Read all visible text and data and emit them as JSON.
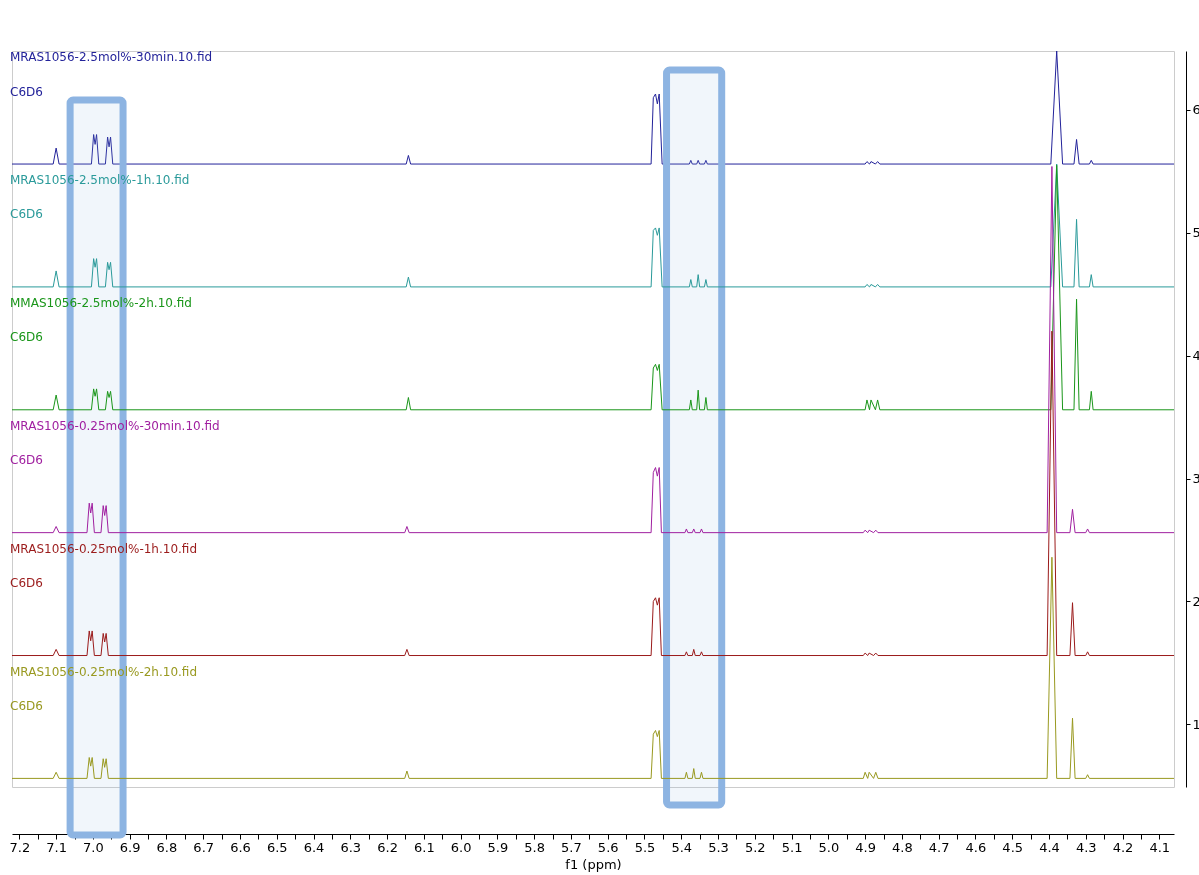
{
  "chart_data": {
    "type": "line",
    "xlabel": "f1 (ppm)",
    "xlim": [
      7.22,
      4.06
    ],
    "ylim": [
      0.49,
      6.48
    ],
    "xticks": [
      7.2,
      {
        "value": 7.15,
        "label": null
      },
      7.1,
      {
        "value": 7.05,
        "label": null
      },
      {
        "value": 7,
        "label": "7.0"
      },
      {
        "value": 6.95,
        "label": null
      },
      6.9,
      {
        "value": 6.85,
        "label": null
      },
      6.8,
      {
        "value": 6.75,
        "label": null
      },
      6.7,
      {
        "value": 6.65,
        "label": null
      },
      6.6,
      {
        "value": 6.55,
        "label": null
      },
      6.5,
      {
        "value": 6.45,
        "label": null
      },
      6.4,
      {
        "value": 6.35,
        "label": null
      },
      6.3,
      {
        "value": 6.25,
        "label": null
      },
      6.2,
      {
        "value": 6.15,
        "label": null
      },
      6.1,
      {
        "value": 6.05,
        "label": null
      },
      {
        "value": 6,
        "label": "6.0"
      },
      {
        "value": 5.95,
        "label": null
      },
      5.9,
      {
        "value": 5.85,
        "label": null
      },
      5.8,
      {
        "value": 5.75,
        "label": null
      },
      5.7,
      {
        "value": 5.65,
        "label": null
      },
      5.6,
      {
        "value": 5.55,
        "label": null
      },
      5.5,
      {
        "value": 5.45,
        "label": null
      },
      5.4,
      {
        "value": 5.35,
        "label": null
      },
      5.3,
      {
        "value": 5.25,
        "label": null
      },
      5.2,
      {
        "value": 5.15,
        "label": null
      },
      5.1,
      {
        "value": 5.05,
        "label": null
      },
      {
        "value": 5,
        "label": "5.0"
      },
      {
        "value": 4.95,
        "label": null
      },
      4.9,
      {
        "value": 4.85,
        "label": null
      },
      4.8,
      {
        "value": 4.75,
        "label": null
      },
      4.7,
      {
        "value": 4.65,
        "label": null
      },
      4.6,
      {
        "value": 4.55,
        "label": null
      },
      4.5,
      {
        "value": 4.45,
        "label": null
      },
      4.4,
      {
        "value": 4.35,
        "label": null
      },
      4.3,
      {
        "value": 4.25,
        "label": null
      },
      4.2,
      {
        "value": 4.15,
        "label": null
      },
      4.1
    ],
    "yticks": [
      1,
      2,
      3,
      4,
      5,
      6
    ],
    "grid": false,
    "annotations": [
      "C6D6",
      "C6D6",
      "C6D6",
      "C6D6",
      "C6D6",
      "C6D6"
    ],
    "bands": [
      {
        "axis": "x",
        "from": 7.062,
        "to": 6.918,
        "color": "#8db4e2"
      },
      {
        "axis": "x",
        "from": 5.44,
        "to": 5.29,
        "color": "#8db4e2"
      }
    ],
    "series": [
      {
        "name": "MRAS1056-2.5mol%-30min.10.fid",
        "color": "#23239a",
        "x": [
          7.22,
          7.108,
          7.1,
          7.092,
          7.004,
          6.998,
          6.994,
          6.99,
          6.984,
          6.966,
          6.96,
          6.956,
          6.952,
          6.946,
          6.148,
          6.142,
          6.136,
          5.482,
          5.476,
          5.47,
          5.465,
          5.46,
          5.452,
          5.378,
          5.374,
          5.37,
          5.358,
          5.354,
          5.35,
          5.337,
          5.333,
          5.329,
          4.9,
          4.895,
          4.888,
          4.884,
          4.872,
          4.866,
          4.86,
          4.395,
          4.379,
          4.363,
          4.332,
          4.325,
          4.318,
          4.29,
          4.285,
          4.28,
          4.06
        ],
        "values": [
          5.56,
          5.56,
          5.69,
          5.56,
          5.56,
          5.8,
          5.72,
          5.8,
          5.56,
          5.56,
          5.78,
          5.7,
          5.78,
          5.56,
          5.56,
          5.63,
          5.56,
          5.56,
          6.1,
          6.13,
          6.05,
          6.13,
          5.56,
          5.56,
          5.59,
          5.56,
          5.56,
          5.59,
          5.56,
          5.56,
          5.59,
          5.56,
          5.56,
          5.58,
          5.56,
          5.58,
          5.56,
          5.58,
          5.56,
          5.56,
          6.48,
          5.56,
          5.56,
          5.76,
          5.56,
          5.56,
          5.59,
          5.56,
          5.56
        ]
      },
      {
        "name": "MRAS1056-2.5mol%-1h.10.fid",
        "color": "#2a9a9a",
        "x": [
          7.22,
          7.108,
          7.1,
          7.092,
          7.004,
          6.998,
          6.994,
          6.99,
          6.984,
          6.966,
          6.96,
          6.956,
          6.952,
          6.946,
          6.148,
          6.142,
          6.136,
          5.482,
          5.476,
          5.47,
          5.465,
          5.46,
          5.452,
          5.378,
          5.374,
          5.37,
          5.358,
          5.354,
          5.35,
          5.337,
          5.333,
          5.329,
          4.9,
          4.895,
          4.888,
          4.884,
          4.872,
          4.866,
          4.86,
          4.395,
          4.379,
          4.363,
          4.332,
          4.325,
          4.318,
          4.29,
          4.285,
          4.28,
          4.06
        ],
        "values": [
          4.56,
          4.56,
          4.69,
          4.56,
          4.56,
          4.79,
          4.72,
          4.79,
          4.56,
          4.56,
          4.76,
          4.7,
          4.76,
          4.56,
          4.56,
          4.64,
          4.56,
          4.56,
          5.02,
          5.04,
          4.98,
          5.04,
          4.56,
          4.56,
          4.62,
          4.56,
          4.56,
          4.66,
          4.56,
          4.56,
          4.62,
          4.56,
          4.56,
          4.58,
          4.56,
          4.58,
          4.56,
          4.58,
          4.56,
          4.56,
          5.56,
          4.56,
          4.56,
          5.11,
          4.56,
          4.56,
          4.66,
          4.56,
          4.56
        ]
      },
      {
        "name": "MMAS1056-2.5mol%-2h.10.fid",
        "color": "#1a961a",
        "x": [
          7.22,
          7.108,
          7.1,
          7.092,
          7.004,
          6.998,
          6.994,
          6.99,
          6.984,
          6.966,
          6.96,
          6.956,
          6.952,
          6.946,
          6.148,
          6.142,
          6.136,
          5.482,
          5.476,
          5.47,
          5.465,
          5.46,
          5.452,
          5.378,
          5.374,
          5.37,
          5.358,
          5.354,
          5.35,
          5.337,
          5.333,
          5.329,
          4.9,
          4.895,
          4.888,
          4.884,
          4.872,
          4.866,
          4.86,
          4.395,
          4.379,
          4.363,
          4.332,
          4.325,
          4.318,
          4.29,
          4.285,
          4.28,
          4.06
        ],
        "values": [
          3.56,
          3.56,
          3.68,
          3.56,
          3.56,
          3.73,
          3.67,
          3.73,
          3.56,
          3.56,
          3.71,
          3.66,
          3.71,
          3.56,
          3.56,
          3.66,
          3.56,
          3.56,
          3.9,
          3.93,
          3.88,
          3.93,
          3.56,
          3.56,
          3.64,
          3.56,
          3.56,
          3.72,
          3.56,
          3.56,
          3.66,
          3.56,
          3.56,
          3.64,
          3.56,
          3.64,
          3.56,
          3.64,
          3.56,
          3.56,
          5.55,
          3.56,
          3.56,
          4.46,
          3.56,
          3.56,
          3.71,
          3.56,
          3.56
        ]
      },
      {
        "name": "MRAS1056-0.25mol%-30min.10.fid",
        "color": "#a020a0",
        "x": [
          7.22,
          7.108,
          7.1,
          7.092,
          7.016,
          7.01,
          7.006,
          7.002,
          6.996,
          6.978,
          6.972,
          6.968,
          6.964,
          6.958,
          6.152,
          6.146,
          6.14,
          5.482,
          5.476,
          5.47,
          5.465,
          5.46,
          5.454,
          5.39,
          5.386,
          5.382,
          5.37,
          5.366,
          5.362,
          5.349,
          5.345,
          5.341,
          4.905,
          4.9,
          4.893,
          4.889,
          4.877,
          4.871,
          4.865,
          4.405,
          4.392,
          4.379,
          4.343,
          4.336,
          4.329,
          4.3,
          4.295,
          4.29,
          4.06
        ],
        "values": [
          2.56,
          2.56,
          2.61,
          2.56,
          2.56,
          2.8,
          2.72,
          2.8,
          2.56,
          2.56,
          2.78,
          2.7,
          2.78,
          2.56,
          2.56,
          2.61,
          2.56,
          2.56,
          3.05,
          3.09,
          3.02,
          3.09,
          2.56,
          2.56,
          2.59,
          2.56,
          2.56,
          2.59,
          2.56,
          2.56,
          2.59,
          2.56,
          2.56,
          2.58,
          2.56,
          2.58,
          2.56,
          2.58,
          2.56,
          2.56,
          5.54,
          2.56,
          2.56,
          2.75,
          2.56,
          2.56,
          2.59,
          2.56,
          2.56
        ]
      },
      {
        "name": "MRAS1056-0.25mol%-1h.10.fid",
        "color": "#9b1b1b",
        "x": [
          7.22,
          7.108,
          7.1,
          7.092,
          7.016,
          7.01,
          7.006,
          7.002,
          6.996,
          6.978,
          6.972,
          6.968,
          6.964,
          6.958,
          6.152,
          6.146,
          6.14,
          5.482,
          5.476,
          5.47,
          5.465,
          5.46,
          5.454,
          5.39,
          5.386,
          5.382,
          5.37,
          5.366,
          5.362,
          5.349,
          5.345,
          5.341,
          4.905,
          4.9,
          4.893,
          4.889,
          4.877,
          4.871,
          4.865,
          4.405,
          4.392,
          4.379,
          4.343,
          4.336,
          4.329,
          4.3,
          4.295,
          4.29,
          4.06
        ],
        "values": [
          1.56,
          1.56,
          1.61,
          1.56,
          1.56,
          1.76,
          1.68,
          1.76,
          1.56,
          1.56,
          1.74,
          1.67,
          1.74,
          1.56,
          1.56,
          1.61,
          1.56,
          1.56,
          2.0,
          2.03,
          1.97,
          2.03,
          1.56,
          1.56,
          1.59,
          1.56,
          1.56,
          1.61,
          1.56,
          1.56,
          1.59,
          1.56,
          1.56,
          1.58,
          1.56,
          1.58,
          1.56,
          1.58,
          1.56,
          1.56,
          4.2,
          1.56,
          1.56,
          1.99,
          1.56,
          1.56,
          1.59,
          1.56,
          1.56
        ]
      },
      {
        "name": "MRAS1056-0.25mol%-2h.10.fid",
        "color": "#999920",
        "x": [
          7.22,
          7.108,
          7.1,
          7.092,
          7.016,
          7.01,
          7.006,
          7.002,
          6.996,
          6.978,
          6.972,
          6.968,
          6.964,
          6.958,
          6.152,
          6.146,
          6.14,
          5.482,
          5.476,
          5.47,
          5.465,
          5.46,
          5.454,
          5.39,
          5.386,
          5.382,
          5.37,
          5.366,
          5.362,
          5.349,
          5.345,
          5.341,
          4.905,
          4.9,
          4.893,
          4.889,
          4.877,
          4.871,
          4.865,
          4.405,
          4.392,
          4.379,
          4.343,
          4.336,
          4.329,
          4.3,
          4.295,
          4.29,
          4.06
        ],
        "values": [
          0.56,
          0.56,
          0.61,
          0.56,
          0.56,
          0.73,
          0.66,
          0.73,
          0.56,
          0.56,
          0.72,
          0.65,
          0.72,
          0.56,
          0.56,
          0.62,
          0.56,
          0.56,
          0.92,
          0.95,
          0.9,
          0.95,
          0.56,
          0.56,
          0.61,
          0.56,
          0.56,
          0.64,
          0.56,
          0.56,
          0.61,
          0.56,
          0.56,
          0.61,
          0.56,
          0.61,
          0.56,
          0.61,
          0.56,
          0.56,
          2.36,
          0.56,
          0.56,
          1.05,
          0.56,
          0.56,
          0.59,
          0.56,
          0.56
        ]
      }
    ]
  }
}
